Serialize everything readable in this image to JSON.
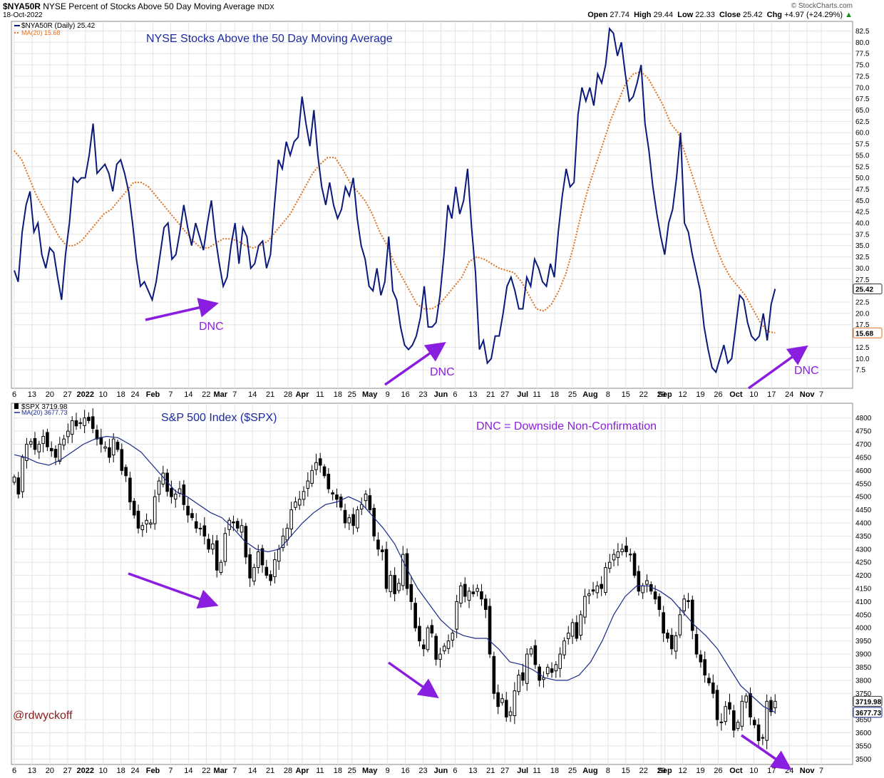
{
  "header": {
    "symbol": "$NYA50R",
    "description": "NYSE Percent of Stocks Above 50 Day Moving Average",
    "exchange": "INDX",
    "date": "18-Oct-2022",
    "watermark": "© StockCharts.com",
    "ohlc": {
      "open_label": "Open",
      "open": "27.74",
      "high_label": "High",
      "high": "29.44",
      "low_label": "Low",
      "low": "22.33",
      "close_label": "Close",
      "close": "25.42",
      "chg_label": "Chg",
      "chg": "+4.97 (+24.29%)",
      "chg_arrow": "▲"
    }
  },
  "author": "@rdwyckoff",
  "colors": {
    "nya_line": "#0b1a7a",
    "nya_ma": "#e07020",
    "spx_ma": "#1a2a8a",
    "annot": "#8a1ee0",
    "title": "#1a2aa0",
    "grid": "#e4e4e4",
    "author": "#8b1a1a"
  },
  "chart_data": [
    {
      "type": "line",
      "title": "NYSE Stocks Above the 50 Day Moving Average",
      "series": [
        {
          "name": "$NYA50R (Daily) 25.42",
          "label": "$NYA50R (Daily)",
          "last": "25.42",
          "style": "solid",
          "values": [
            29.5,
            27.0,
            38.0,
            44.0,
            47.0,
            38.0,
            40.0,
            33.0,
            30.0,
            34.5,
            33.5,
            28.0,
            23.0,
            33.0,
            40.0,
            50.0,
            49.0,
            50.0,
            50.0,
            55.0,
            62.0,
            51.0,
            52.0,
            53.0,
            51.0,
            47.0,
            53.0,
            54.0,
            51.0,
            47.0,
            40.0,
            32.0,
            26.0,
            27.0,
            25.0,
            23.0,
            27.0,
            33.0,
            39.0,
            40.0,
            32.0,
            33.0,
            38.0,
            44.0,
            39.0,
            35.0,
            40.0,
            37.0,
            34.0,
            40.0,
            45.0,
            37.0,
            31.0,
            26.0,
            28.0,
            35.0,
            40.0,
            31.0,
            39.0,
            37.0,
            30.0,
            31.0,
            35.0,
            36.0,
            30.0,
            33.0,
            44.0,
            54.0,
            52.0,
            58.0,
            55.0,
            58.0,
            59.0,
            68.0,
            62.0,
            57.0,
            65.0,
            55.0,
            48.0,
            44.0,
            49.0,
            44.0,
            41.0,
            43.0,
            48.0,
            46.0,
            50.0,
            41.0,
            35.0,
            32.0,
            26.0,
            25.0,
            30.0,
            24.0,
            27.0,
            37.0,
            25.0,
            23.0,
            17.0,
            13.0,
            12.0,
            13.0,
            15.0,
            19.0,
            26.0,
            17.0,
            17.0,
            18.0,
            24.0,
            33.0,
            44.0,
            41.0,
            48.0,
            42.0,
            45.0,
            52.0,
            39.0,
            29.0,
            12.0,
            14.0,
            9.0,
            10.0,
            15.0,
            15.0,
            20.0,
            26.0,
            28.0,
            25.0,
            21.0,
            21.0,
            28.0,
            26.0,
            32.0,
            30.0,
            27.0,
            26.0,
            31.0,
            28.0,
            38.0,
            46.0,
            52.0,
            48.0,
            49.0,
            64.0,
            70.0,
            67.0,
            70.0,
            66.0,
            73.0,
            71.0,
            75.0,
            83.0,
            82.0,
            77.0,
            80.0,
            73.0,
            67.0,
            68.0,
            71.0,
            75.0,
            62.0,
            56.0,
            48.0,
            42.0,
            37.0,
            33.0,
            40.0,
            43.0,
            50.0,
            60.0,
            40.0,
            38.0,
            33.0,
            29.0,
            25.0,
            17.0,
            12.0,
            8.0,
            7.0,
            10.0,
            13.0,
            9.0,
            10.0,
            17.0,
            24.0,
            23.0,
            18.0,
            15.0,
            14.0,
            15.0,
            20.0,
            14.0,
            22.0,
            25.42
          ]
        },
        {
          "name": "MA(20) 15.68",
          "label": "MA(20)",
          "last": "15.68",
          "style": "dotted",
          "values": [
            56.0,
            54.0,
            50.0,
            46.0,
            43.0,
            40.0,
            37.0,
            35.0,
            35.0,
            36.0,
            38.0,
            40.0,
            42.0,
            43.0,
            45.0,
            47.0,
            49.0,
            49.0,
            48.0,
            46.0,
            44.0,
            42.0,
            40.0,
            38.0,
            36.0,
            34.5,
            34.5,
            35.5,
            36.5,
            36.5,
            36.0,
            35.0,
            34.5,
            35.0,
            36.0,
            38.0,
            40.0,
            42.0,
            45.0,
            48.0,
            51.0,
            53.0,
            54.5,
            54.5,
            52.0,
            49.0,
            47.0,
            45.0,
            42.0,
            38.0,
            35.0,
            31.0,
            28.0,
            25.0,
            22.0,
            21.0,
            21.0,
            22.0,
            24.0,
            26.0,
            28.0,
            31.5,
            32.5,
            32.0,
            31.0,
            30.0,
            29.5,
            29.0,
            27.0,
            24.0,
            21.0,
            20.5,
            22.0,
            25.0,
            29.0,
            35.0,
            42.0,
            48.0,
            53.0,
            58.0,
            63.0,
            67.0,
            71.0,
            73.0,
            73.5,
            72.0,
            69.0,
            66.0,
            62.0,
            60.0,
            55.0,
            50.0,
            45.0,
            40.0,
            35.0,
            31.0,
            28.0,
            26.0,
            24.0,
            21.0,
            18.0,
            16.0,
            15.68
          ]
        }
      ],
      "ylim": [
        5,
        84
      ],
      "yticks": [
        "82.5",
        "80.0",
        "77.5",
        "75.0",
        "72.5",
        "70.0",
        "67.5",
        "65.0",
        "62.5",
        "60.0",
        "57.5",
        "55.0",
        "52.5",
        "50.0",
        "47.5",
        "45.0",
        "42.5",
        "40.0",
        "37.5",
        "35.0",
        "32.5",
        "30.0",
        "27.5",
        "22.5",
        "20.0",
        "17.5",
        "12.5",
        "10.0",
        "7.5"
      ],
      "last_badge": "25.42",
      "ma_badge": "15.68",
      "annotations": [
        "DNC",
        "DNC",
        "DNC"
      ]
    },
    {
      "type": "candlestick",
      "title": "S&P 500 Index ($SPX)",
      "series": [
        {
          "name": "$SPX 3719.98",
          "label": "$SPX",
          "last": "3719.98",
          "values": [
            4575,
            4510,
            4650,
            4700,
            4710,
            4680,
            4700,
            4730,
            4690,
            4675,
            4650,
            4700,
            4720,
            4750,
            4790,
            4770,
            4780,
            4800,
            4790,
            4760,
            4720,
            4700,
            4690,
            4650,
            4720,
            4680,
            4600,
            4580,
            4480,
            4430,
            4380,
            4390,
            4410,
            4400,
            4500,
            4560,
            4590,
            4520,
            4500,
            4510,
            4530,
            4470,
            4430,
            4420,
            4380,
            4380,
            4350,
            4300,
            4320,
            4220,
            4250,
            4360,
            4410,
            4400,
            4380,
            4390,
            4270,
            4190,
            4230,
            4290,
            4240,
            4200,
            4180,
            4260,
            4300,
            4350,
            4380,
            4450,
            4480,
            4490,
            4520,
            4560,
            4600,
            4630,
            4620,
            4580,
            4530,
            4510,
            4490,
            4460,
            4400,
            4420,
            4390,
            4450,
            4470,
            4510,
            4450,
            4350,
            4300,
            4290,
            4150,
            4200,
            4130,
            4170,
            4280,
            4150,
            4100,
            4000,
            3950,
            3920,
            4000,
            3980,
            3880,
            3900,
            3930,
            3950,
            3980,
            4100,
            4160,
            4120,
            4140,
            4130,
            4150,
            4110,
            4070,
            3900,
            3750,
            3700,
            3730,
            3660,
            3680,
            3760,
            3820,
            3800,
            3900,
            3920,
            3860,
            3800,
            3810,
            3850,
            3830,
            3860,
            3900,
            3950,
            3980,
            4020,
            3960,
            4050,
            4120,
            4130,
            4140,
            4160,
            4150,
            4230,
            4250,
            4280,
            4290,
            4300,
            4290,
            4280,
            4200,
            4140,
            4160,
            4180,
            4140,
            4110,
            4070,
            3980,
            3960,
            3920,
            3970,
            4050,
            4110,
            4100,
            3990,
            3900,
            3870,
            3820,
            3790,
            3750,
            3650,
            3640,
            3700,
            3690,
            3610,
            3640,
            3720,
            3740,
            3660,
            3630,
            3570,
            3580,
            3720,
            3680,
            3719.98
          ]
        },
        {
          "name": "MA(20) 3677.73",
          "label": "MA(20)",
          "last": "3677.73",
          "values": [
            4660,
            4650,
            4630,
            4620,
            4640,
            4670,
            4700,
            4720,
            4730,
            4725,
            4700,
            4670,
            4620,
            4570,
            4520,
            4500,
            4470,
            4440,
            4420,
            4380,
            4330,
            4300,
            4290,
            4300,
            4350,
            4400,
            4440,
            4470,
            4480,
            4500,
            4480,
            4430,
            4380,
            4320,
            4230,
            4150,
            4090,
            4030,
            3990,
            3970,
            3960,
            3960,
            3920,
            3870,
            3860,
            3840,
            3810,
            3800,
            3800,
            3820,
            3870,
            3950,
            4050,
            4120,
            4160,
            4160,
            4140,
            4110,
            4060,
            4010,
            3970,
            3920,
            3850,
            3780,
            3740,
            3700,
            3677.73
          ]
        }
      ],
      "ylim": [
        3490,
        4840
      ],
      "yticks": [
        "4800",
        "4750",
        "4700",
        "4650",
        "4600",
        "4550",
        "4500",
        "4450",
        "4400",
        "4350",
        "4300",
        "4250",
        "4200",
        "4150",
        "4100",
        "4050",
        "4000",
        "3950",
        "3900",
        "3850",
        "3800",
        "3750",
        "3650",
        "3600",
        "3550",
        "3500"
      ],
      "last_badge": "3719.98",
      "ma_badge": "3677.73",
      "annotations": [
        "DNC = Downside Non-Confirmation"
      ]
    }
  ],
  "x_axis": {
    "ticks": [
      {
        "l": "6",
        "d": 0
      },
      {
        "l": "13",
        "d": 5
      },
      {
        "l": "20",
        "d": 10
      },
      {
        "l": "27",
        "d": 15
      },
      {
        "l": "2022",
        "d": 20,
        "bold": true
      },
      {
        "l": "10",
        "d": 25
      },
      {
        "l": "18",
        "d": 30
      },
      {
        "l": "24",
        "d": 34
      },
      {
        "l": "Feb",
        "d": 39,
        "bold": true
      },
      {
        "l": "7",
        "d": 44
      },
      {
        "l": "14",
        "d": 49
      },
      {
        "l": "22",
        "d": 54
      },
      {
        "l": "Mar",
        "d": 58,
        "bold": true
      },
      {
        "l": "7",
        "d": 62
      },
      {
        "l": "14",
        "d": 67
      },
      {
        "l": "21",
        "d": 72
      },
      {
        "l": "28",
        "d": 77
      },
      {
        "l": "Apr",
        "d": 81,
        "bold": true
      },
      {
        "l": "11",
        "d": 86
      },
      {
        "l": "18",
        "d": 91
      },
      {
        "l": "25",
        "d": 95
      },
      {
        "l": "May",
        "d": 100,
        "bold": true
      },
      {
        "l": "9",
        "d": 105
      },
      {
        "l": "16",
        "d": 110
      },
      {
        "l": "23",
        "d": 115
      },
      {
        "l": "Jun",
        "d": 120,
        "bold": true
      },
      {
        "l": "6",
        "d": 124
      },
      {
        "l": "13",
        "d": 129
      },
      {
        "l": "21",
        "d": 134
      },
      {
        "l": "27",
        "d": 138
      },
      {
        "l": "Jul",
        "d": 143,
        "bold": true
      },
      {
        "l": "11",
        "d": 147
      },
      {
        "l": "18",
        "d": 152
      },
      {
        "l": "25",
        "d": 157
      },
      {
        "l": "Aug",
        "d": 162,
        "bold": true
      },
      {
        "l": "8",
        "d": 167
      },
      {
        "l": "15",
        "d": 172
      },
      {
        "l": "22",
        "d": 177
      },
      {
        "l": "29",
        "d": 182
      },
      {
        "l": "Sep",
        "d": 183,
        "bold": true
      },
      {
        "l": "12",
        "d": 188
      },
      {
        "l": "19",
        "d": 193
      },
      {
        "l": "26",
        "d": 198
      },
      {
        "l": "Oct",
        "d": 203,
        "bold": true
      },
      {
        "l": "10",
        "d": 208
      },
      {
        "l": "17",
        "d": 213
      },
      {
        "l": "24",
        "d": 218
      },
      {
        "l": "Nov",
        "d": 223,
        "bold": true
      },
      {
        "l": "7",
        "d": 227
      }
    ]
  }
}
